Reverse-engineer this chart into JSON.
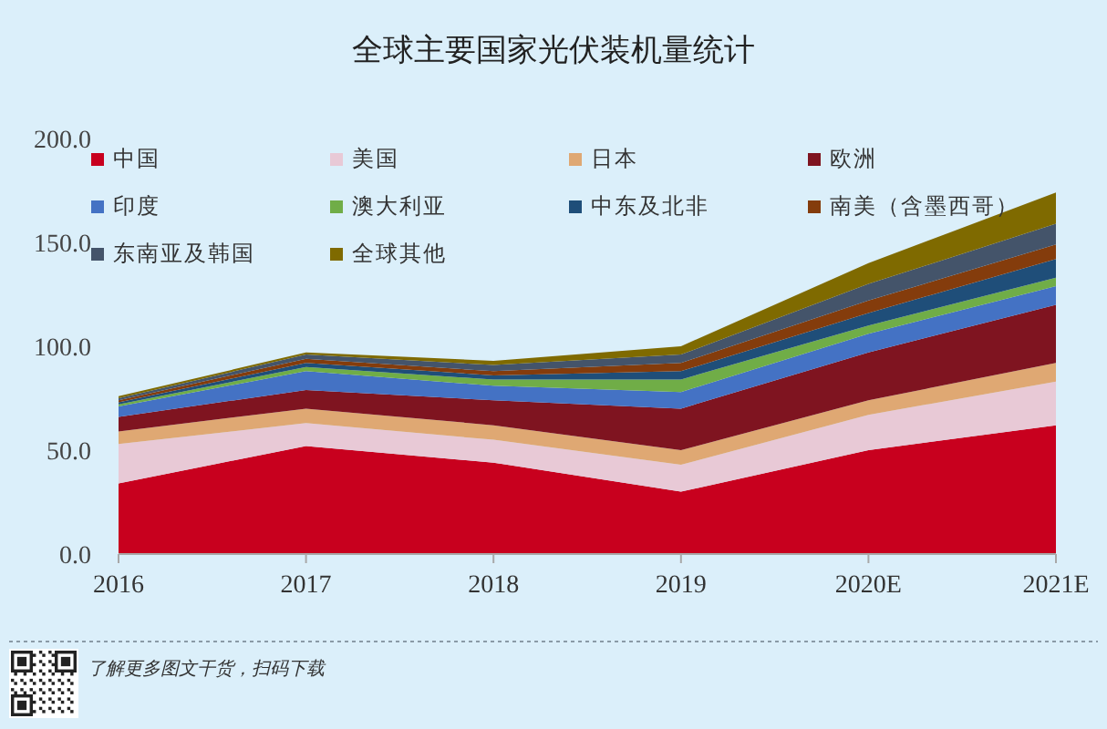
{
  "chart_data": {
    "type": "area",
    "title": "全球主要国家光伏装机量统计",
    "categories": [
      "2016",
      "2017",
      "2018",
      "2019",
      "2020E",
      "2021E"
    ],
    "stacked": true,
    "series": [
      {
        "name": "中国",
        "color": "#c8001e",
        "values": [
          34,
          52,
          44,
          30,
          50,
          62
        ]
      },
      {
        "name": "美国",
        "color": "#e8c9d6",
        "values": [
          19,
          11,
          11,
          13,
          17,
          21
        ]
      },
      {
        "name": "日本",
        "color": "#dfa873",
        "values": [
          6,
          7,
          7,
          7,
          7,
          9
        ]
      },
      {
        "name": "欧洲",
        "color": "#7f1420",
        "values": [
          7,
          9,
          12,
          20,
          23,
          28
        ]
      },
      {
        "name": "印度",
        "color": "#4472c4",
        "values": [
          5,
          9,
          7,
          8,
          9,
          9
        ]
      },
      {
        "name": "澳大利亚",
        "color": "#70ad47",
        "values": [
          1,
          2,
          3,
          6,
          4,
          4
        ]
      },
      {
        "name": "中东及北非",
        "color": "#1f4e79",
        "values": [
          1,
          2,
          2,
          4,
          6,
          9
        ]
      },
      {
        "name": "南美（含墨西哥）",
        "color": "#843c0c",
        "values": [
          1,
          2,
          2,
          4,
          6,
          7
        ]
      },
      {
        "name": "东南亚及韩国",
        "color": "#44546a",
        "values": [
          1,
          2,
          3,
          4,
          8,
          10
        ]
      },
      {
        "name": "全球其他",
        "color": "#7f6a00",
        "values": [
          1,
          1,
          2,
          4,
          10,
          15
        ]
      }
    ],
    "ylim": [
      0,
      200
    ],
    "yticks": [
      {
        "value": 0,
        "label": "0.0"
      },
      {
        "value": 50,
        "label": "50.0"
      },
      {
        "value": 100,
        "label": "100.0"
      },
      {
        "value": 150,
        "label": "150.0"
      },
      {
        "value": 200,
        "label": "200.0"
      }
    ],
    "legend": "top",
    "annotations": [
      "了解更多图文干货，扫码下载"
    ]
  }
}
